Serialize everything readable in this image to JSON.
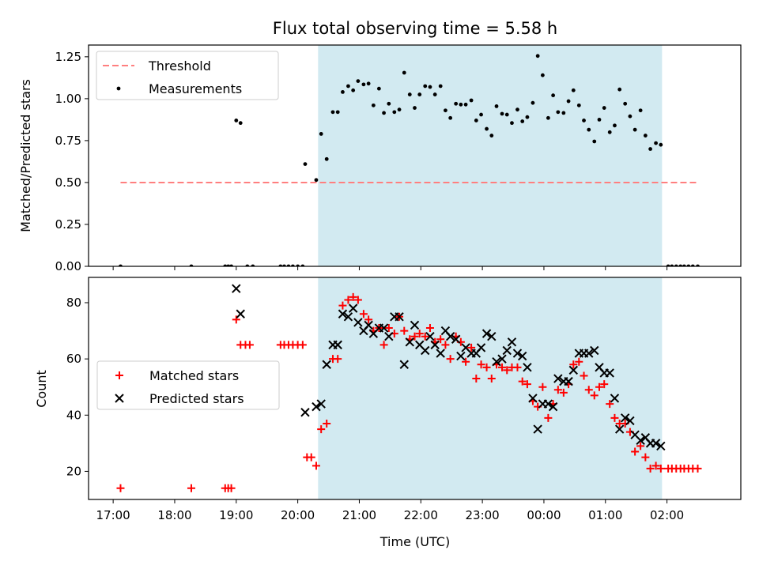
{
  "chart_data": [
    {
      "type": "scatter",
      "title": "Flux total observing time = 5.58 h",
      "xlabel": "",
      "ylabel": "Matched/Predicted stars",
      "ylim": [
        0,
        1.32
      ],
      "yticks": [
        "0.00",
        "0.25",
        "0.50",
        "0.75",
        "1.00",
        "1.25"
      ],
      "ytick_values": [
        0,
        0.25,
        0.5,
        0.75,
        1.0,
        1.25
      ],
      "x_unit": "hours since 17:00 UTC",
      "xlim": [
        -0.4,
        10.2
      ],
      "shaded_interval": [
        3.33,
        8.92
      ],
      "shade_color": "#add8e6",
      "legend_position": "upper-left",
      "legend": [
        "Threshold",
        "Measurements"
      ],
      "threshold": {
        "name": "Threshold",
        "value": 0.5,
        "x_range": [
          0.12,
          9.52
        ],
        "color": "#ff7f7f",
        "style": "dashed"
      },
      "series": [
        {
          "name": "Measurements",
          "color": "#000000",
          "marker": "dot",
          "points": [
            [
              0.12,
              0
            ],
            [
              1.27,
              0
            ],
            [
              1.82,
              0
            ],
            [
              1.87,
              0
            ],
            [
              1.92,
              0
            ],
            [
              2.0,
              0.87
            ],
            [
              2.07,
              0.855
            ],
            [
              2.18,
              0
            ],
            [
              2.27,
              0
            ],
            [
              2.72,
              0
            ],
            [
              2.78,
              0
            ],
            [
              2.85,
              0
            ],
            [
              2.92,
              0
            ],
            [
              3.0,
              0
            ],
            [
              3.08,
              0
            ],
            [
              3.12,
              0.61
            ],
            [
              3.3,
              0.515
            ],
            [
              3.38,
              0.79
            ],
            [
              3.47,
              0.64
            ],
            [
              3.57,
              0.92
            ],
            [
              3.65,
              0.92
            ],
            [
              3.73,
              1.04
            ],
            [
              3.82,
              1.075
            ],
            [
              3.9,
              1.05
            ],
            [
              3.98,
              1.105
            ],
            [
              4.07,
              1.085
            ],
            [
              4.15,
              1.09
            ],
            [
              4.23,
              0.96
            ],
            [
              4.32,
              1.06
            ],
            [
              4.4,
              0.915
            ],
            [
              4.48,
              0.97
            ],
            [
              4.57,
              0.92
            ],
            [
              4.65,
              0.935
            ],
            [
              4.73,
              1.155
            ],
            [
              4.82,
              1.025
            ],
            [
              4.9,
              0.945
            ],
            [
              4.98,
              1.025
            ],
            [
              5.07,
              1.075
            ],
            [
              5.15,
              1.07
            ],
            [
              5.23,
              1.025
            ],
            [
              5.32,
              1.075
            ],
            [
              5.4,
              0.93
            ],
            [
              5.48,
              0.885
            ],
            [
              5.57,
              0.97
            ],
            [
              5.65,
              0.965
            ],
            [
              5.73,
              0.965
            ],
            [
              5.82,
              0.99
            ],
            [
              5.9,
              0.87
            ],
            [
              5.98,
              0.905
            ],
            [
              6.07,
              0.82
            ],
            [
              6.15,
              0.78
            ],
            [
              6.23,
              0.955
            ],
            [
              6.32,
              0.91
            ],
            [
              6.4,
              0.905
            ],
            [
              6.48,
              0.855
            ],
            [
              6.57,
              0.935
            ],
            [
              6.65,
              0.865
            ],
            [
              6.73,
              0.89
            ],
            [
              6.82,
              0.975
            ],
            [
              6.9,
              1.255
            ],
            [
              6.98,
              1.14
            ],
            [
              7.07,
              0.885
            ],
            [
              7.15,
              1.02
            ],
            [
              7.23,
              0.92
            ],
            [
              7.32,
              0.915
            ],
            [
              7.4,
              0.985
            ],
            [
              7.48,
              1.05
            ],
            [
              7.57,
              0.96
            ],
            [
              7.65,
              0.87
            ],
            [
              7.73,
              0.815
            ],
            [
              7.82,
              0.745
            ],
            [
              7.9,
              0.875
            ],
            [
              7.98,
              0.945
            ],
            [
              8.07,
              0.8
            ],
            [
              8.15,
              0.84
            ],
            [
              8.23,
              1.055
            ],
            [
              8.32,
              0.97
            ],
            [
              8.4,
              0.895
            ],
            [
              8.48,
              0.815
            ],
            [
              8.57,
              0.93
            ],
            [
              8.65,
              0.78
            ],
            [
              8.73,
              0.7
            ],
            [
              8.82,
              0.735
            ],
            [
              8.9,
              0.725
            ],
            [
              9.02,
              0
            ],
            [
              9.08,
              0
            ],
            [
              9.15,
              0
            ],
            [
              9.22,
              0
            ],
            [
              9.28,
              0
            ],
            [
              9.35,
              0
            ],
            [
              9.42,
              0
            ],
            [
              9.5,
              0
            ]
          ]
        }
      ]
    },
    {
      "type": "scatter",
      "title": "",
      "xlabel": "Time (UTC)",
      "ylabel": "Count",
      "ylim": [
        10,
        89
      ],
      "yticks": [
        "20",
        "40",
        "60",
        "80"
      ],
      "ytick_values": [
        20,
        40,
        60,
        80
      ],
      "x_unit": "hours since 17:00 UTC",
      "xlim": [
        -0.4,
        10.2
      ],
      "xticks": [
        "17:00",
        "18:00",
        "19:00",
        "20:00",
        "21:00",
        "22:00",
        "23:00",
        "00:00",
        "01:00",
        "02:00"
      ],
      "xtick_values": [
        0,
        1,
        2,
        3,
        4,
        5,
        6,
        7,
        8,
        9
      ],
      "shaded_interval": [
        3.33,
        8.92
      ],
      "shade_color": "#add8e6",
      "legend_position": "center-left",
      "legend": [
        "Matched stars",
        "Predicted stars"
      ],
      "series": [
        {
          "name": "Matched stars",
          "color": "#ff0000",
          "marker": "plus",
          "points": [
            [
              0.12,
              14
            ],
            [
              1.27,
              14
            ],
            [
              1.82,
              14
            ],
            [
              1.87,
              14
            ],
            [
              1.92,
              14
            ],
            [
              2.0,
              74
            ],
            [
              2.07,
              65
            ],
            [
              2.15,
              65
            ],
            [
              2.22,
              65
            ],
            [
              2.72,
              65
            ],
            [
              2.78,
              65
            ],
            [
              2.85,
              65
            ],
            [
              2.92,
              65
            ],
            [
              3.0,
              65
            ],
            [
              3.08,
              65
            ],
            [
              3.15,
              25
            ],
            [
              3.22,
              25
            ],
            [
              3.3,
              22
            ],
            [
              3.38,
              35
            ],
            [
              3.47,
              37
            ],
            [
              3.57,
              60
            ],
            [
              3.65,
              60
            ],
            [
              3.73,
              79
            ],
            [
              3.82,
              81
            ],
            [
              3.9,
              82
            ],
            [
              3.98,
              81
            ],
            [
              4.07,
              76
            ],
            [
              4.15,
              74
            ],
            [
              4.23,
              70
            ],
            [
              4.32,
              71
            ],
            [
              4.4,
              65
            ],
            [
              4.48,
              71
            ],
            [
              4.57,
              69
            ],
            [
              4.65,
              75
            ],
            [
              4.73,
              70
            ],
            [
              4.82,
              67
            ],
            [
              4.9,
              68
            ],
            [
              4.98,
              69
            ],
            [
              5.07,
              68
            ],
            [
              5.15,
              71
            ],
            [
              5.23,
              66
            ],
            [
              5.32,
              67
            ],
            [
              5.4,
              65
            ],
            [
              5.48,
              60
            ],
            [
              5.57,
              68
            ],
            [
              5.65,
              66
            ],
            [
              5.73,
              59
            ],
            [
              5.82,
              64
            ],
            [
              5.9,
              53
            ],
            [
              5.98,
              58
            ],
            [
              6.07,
              57
            ],
            [
              6.15,
              53
            ],
            [
              6.23,
              58
            ],
            [
              6.32,
              57
            ],
            [
              6.4,
              56
            ],
            [
              6.48,
              57
            ],
            [
              6.57,
              57
            ],
            [
              6.65,
              52
            ],
            [
              6.73,
              51
            ],
            [
              6.82,
              45
            ],
            [
              6.9,
              43
            ],
            [
              6.98,
              50
            ],
            [
              7.07,
              39
            ],
            [
              7.15,
              44
            ],
            [
              7.23,
              49
            ],
            [
              7.32,
              48
            ],
            [
              7.4,
              51
            ],
            [
              7.48,
              58
            ],
            [
              7.57,
              59
            ],
            [
              7.65,
              54
            ],
            [
              7.73,
              49
            ],
            [
              7.82,
              47
            ],
            [
              7.9,
              50
            ],
            [
              7.98,
              51
            ],
            [
              8.07,
              44
            ],
            [
              8.15,
              39
            ],
            [
              8.23,
              37
            ],
            [
              8.32,
              37
            ],
            [
              8.4,
              34
            ],
            [
              8.48,
              27
            ],
            [
              8.57,
              29
            ],
            [
              8.65,
              25
            ],
            [
              8.73,
              21
            ],
            [
              8.82,
              22
            ],
            [
              8.9,
              21
            ],
            [
              9.02,
              21
            ],
            [
              9.08,
              21
            ],
            [
              9.15,
              21
            ],
            [
              9.22,
              21
            ],
            [
              9.28,
              21
            ],
            [
              9.35,
              21
            ],
            [
              9.42,
              21
            ],
            [
              9.5,
              21
            ]
          ]
        },
        {
          "name": "Predicted stars",
          "color": "#000000",
          "marker": "x",
          "points": [
            [
              2.0,
              85
            ],
            [
              2.07,
              76
            ],
            [
              3.12,
              41
            ],
            [
              3.3,
              43
            ],
            [
              3.38,
              44
            ],
            [
              3.47,
              58
            ],
            [
              3.57,
              65
            ],
            [
              3.65,
              65
            ],
            [
              3.73,
              76
            ],
            [
              3.82,
              75
            ],
            [
              3.9,
              78
            ],
            [
              3.98,
              73
            ],
            [
              4.07,
              70
            ],
            [
              4.15,
              72
            ],
            [
              4.23,
              69
            ],
            [
              4.32,
              71
            ],
            [
              4.4,
              71
            ],
            [
              4.48,
              68
            ],
            [
              4.57,
              75
            ],
            [
              4.65,
              75
            ],
            [
              4.73,
              58
            ],
            [
              4.82,
              66
            ],
            [
              4.9,
              72
            ],
            [
              4.98,
              65
            ],
            [
              5.07,
              63
            ],
            [
              5.15,
              68
            ],
            [
              5.23,
              65
            ],
            [
              5.32,
              62
            ],
            [
              5.4,
              70
            ],
            [
              5.48,
              68
            ],
            [
              5.57,
              67
            ],
            [
              5.65,
              61
            ],
            [
              5.73,
              64
            ],
            [
              5.82,
              62
            ],
            [
              5.9,
              62
            ],
            [
              5.98,
              64
            ],
            [
              6.07,
              69
            ],
            [
              6.15,
              68
            ],
            [
              6.23,
              59
            ],
            [
              6.32,
              60
            ],
            [
              6.4,
              63
            ],
            [
              6.48,
              66
            ],
            [
              6.57,
              62
            ],
            [
              6.65,
              61
            ],
            [
              6.73,
              57
            ],
            [
              6.82,
              46
            ],
            [
              6.9,
              35
            ],
            [
              6.98,
              44
            ],
            [
              7.07,
              44
            ],
            [
              7.15,
              43
            ],
            [
              7.23,
              53
            ],
            [
              7.32,
              52
            ],
            [
              7.4,
              52
            ],
            [
              7.48,
              56
            ],
            [
              7.57,
              62
            ],
            [
              7.65,
              62
            ],
            [
              7.73,
              62
            ],
            [
              7.82,
              63
            ],
            [
              7.9,
              57
            ],
            [
              7.98,
              55
            ],
            [
              8.07,
              55
            ],
            [
              8.15,
              46
            ],
            [
              8.23,
              35
            ],
            [
              8.32,
              39
            ],
            [
              8.4,
              38
            ],
            [
              8.48,
              33
            ],
            [
              8.57,
              31
            ],
            [
              8.65,
              32
            ],
            [
              8.73,
              30
            ],
            [
              8.82,
              30
            ],
            [
              8.9,
              29
            ]
          ]
        }
      ]
    }
  ]
}
